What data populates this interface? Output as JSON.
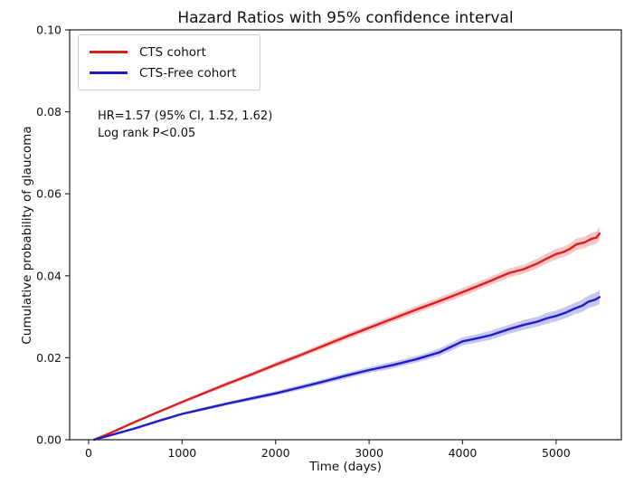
{
  "figure": {
    "title": "Hazard Ratios with 95% confidence interval",
    "background_color": "#ffffff",
    "spine_color": "#2e2e2e",
    "text_color": "#111111"
  },
  "legend": {
    "position": "upper left",
    "items": [
      {
        "label": "CTS cohort",
        "color": "#dc1e1e"
      },
      {
        "label": "CTS-Free cohort",
        "color": "#1e1ec8"
      }
    ]
  },
  "annotation": {
    "line1": "HR=1.57 (95% CI, 1.52, 1.62)",
    "line2": "Log rank P<0.05"
  },
  "axes": {
    "x": {
      "label": "Time (days)",
      "lim": [
        -203,
        5698
      ],
      "tick_values": [
        0,
        1000,
        2000,
        3000,
        4000,
        5000
      ],
      "tick_labels": [
        "0",
        "1000",
        "2000",
        "3000",
        "4000",
        "5000"
      ]
    },
    "y": {
      "label": "Cumulative probability of glaucoma",
      "lim": [
        0,
        0.1
      ],
      "tick_values": [
        0,
        0.02,
        0.04,
        0.06,
        0.08,
        0.1
      ],
      "tick_labels": [
        "0.00",
        "0.02",
        "0.04",
        "0.06",
        "0.08",
        "0.10"
      ]
    }
  },
  "chart_data": {
    "type": "line",
    "title": "Hazard Ratios with 95% confidence interval",
    "xlabel": "Time (days)",
    "ylabel": "Cumulative probability of glaucoma",
    "xlim": [
      -203,
      5698
    ],
    "ylim": [
      0,
      0.1
    ],
    "grid": false,
    "legend_position": "upper left",
    "annotations": [
      "HR=1.57 (95% CI, 1.52, 1.62)",
      "Log rank P<0.05"
    ],
    "series": [
      {
        "name": "CTS cohort",
        "color": "#dc1e1e",
        "band_opacity": 0.25,
        "x": [
          60,
          250,
          500,
          750,
          1000,
          1250,
          1500,
          1750,
          2000,
          2250,
          2500,
          2750,
          3000,
          3250,
          3500,
          3750,
          4000,
          4250,
          4500,
          4650,
          4800,
          4900,
          5000,
          5080,
          5150,
          5220,
          5300,
          5380,
          5430,
          5465
        ],
        "y": [
          0.0,
          0.0018,
          0.0044,
          0.0068,
          0.0092,
          0.0115,
          0.0138,
          0.016,
          0.0183,
          0.0205,
          0.0228,
          0.0251,
          0.0273,
          0.0295,
          0.0317,
          0.0338,
          0.036,
          0.0383,
          0.0407,
          0.0416,
          0.043,
          0.0442,
          0.0453,
          0.0458,
          0.0466,
          0.0477,
          0.0481,
          0.049,
          0.0493,
          0.0503
        ],
        "ci": [
          0.0001,
          0.0002,
          0.0003,
          0.0003,
          0.0004,
          0.0004,
          0.0005,
          0.0005,
          0.0006,
          0.0006,
          0.0007,
          0.0007,
          0.0008,
          0.0008,
          0.0009,
          0.0009,
          0.001,
          0.001,
          0.0011,
          0.0011,
          0.0012,
          0.0012,
          0.0013,
          0.0013,
          0.0013,
          0.0014,
          0.0014,
          0.0015,
          0.0015,
          0.0016
        ]
      },
      {
        "name": "CTS-Free cohort",
        "color": "#1e1ec8",
        "band_opacity": 0.25,
        "x": [
          60,
          250,
          500,
          750,
          1000,
          1250,
          1500,
          1750,
          2000,
          2250,
          2500,
          2750,
          3000,
          3250,
          3500,
          3750,
          4000,
          4150,
          4300,
          4500,
          4650,
          4800,
          4900,
          5000,
          5100,
          5200,
          5280,
          5350,
          5420,
          5465
        ],
        "y": [
          0.0,
          0.0012,
          0.0028,
          0.0046,
          0.0063,
          0.0076,
          0.0089,
          0.0101,
          0.0113,
          0.0127,
          0.0141,
          0.0156,
          0.017,
          0.0182,
          0.0196,
          0.0213,
          0.024,
          0.0247,
          0.0255,
          0.027,
          0.028,
          0.0288,
          0.0296,
          0.0302,
          0.031,
          0.032,
          0.0327,
          0.0337,
          0.0342,
          0.0348
        ],
        "ci": [
          0.0001,
          0.0002,
          0.0002,
          0.0003,
          0.0003,
          0.0004,
          0.0004,
          0.0005,
          0.0005,
          0.0006,
          0.0006,
          0.0007,
          0.0007,
          0.0008,
          0.0008,
          0.0009,
          0.001,
          0.001,
          0.0011,
          0.0011,
          0.0012,
          0.0012,
          0.0013,
          0.0013,
          0.0014,
          0.0014,
          0.0015,
          0.0015,
          0.0016,
          0.0017
        ]
      }
    ]
  }
}
